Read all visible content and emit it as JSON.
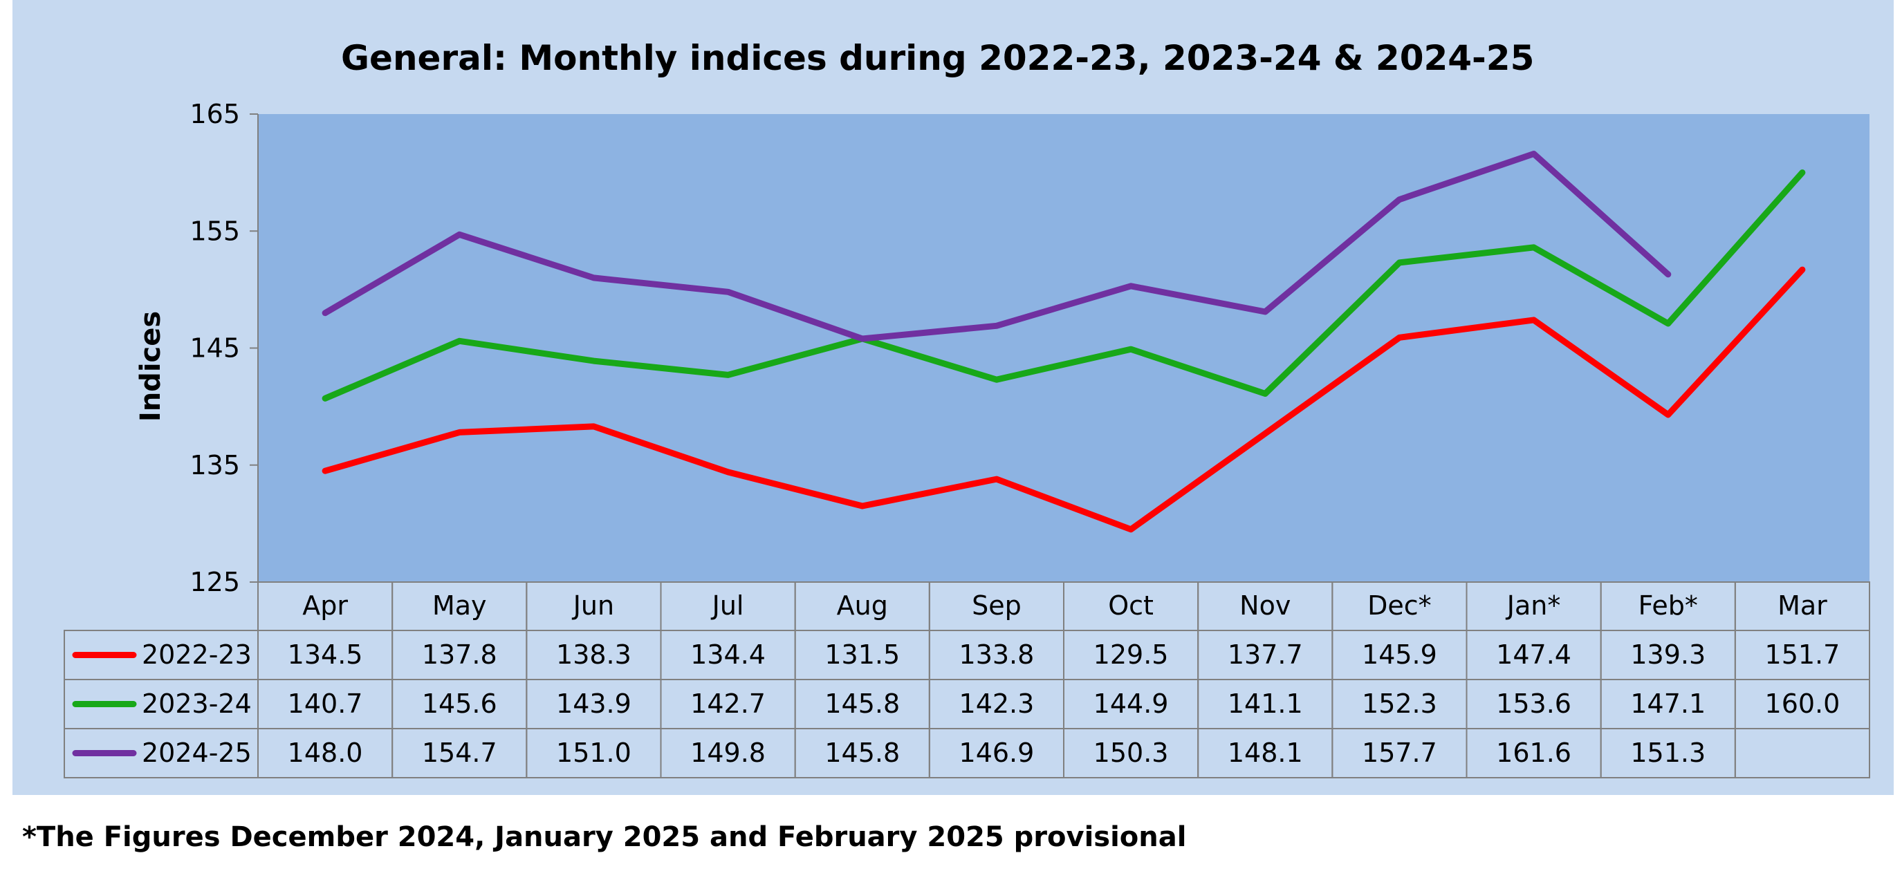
{
  "chart_data": {
    "type": "line",
    "title": "General: Monthly indices during 2022-23, 2023-24 & 2024-25",
    "ylabel": "Indices",
    "xlabel": "",
    "ylim": [
      125,
      165
    ],
    "yticks": [
      "125",
      "135",
      "145",
      "155",
      "165"
    ],
    "grid": false,
    "legend": "data-table-left",
    "categories": [
      "Apr",
      "May",
      "Jun",
      "Jul",
      "Aug",
      "Sep",
      "Oct",
      "Nov",
      "Dec*",
      "Jan*",
      "Feb*",
      "Mar"
    ],
    "series": [
      {
        "name": "2022-23",
        "color": "#ff0000",
        "values": [
          134.5,
          137.8,
          138.3,
          134.4,
          131.5,
          133.8,
          129.5,
          137.7,
          145.9,
          147.4,
          139.3,
          151.7
        ],
        "labels": [
          "134.5",
          "137.8",
          "138.3",
          "134.4",
          "131.5",
          "133.8",
          "129.5",
          "137.7",
          "145.9",
          "147.4",
          "139.3",
          "151.7"
        ]
      },
      {
        "name": "2023-24",
        "color": "#18a818",
        "values": [
          140.7,
          145.6,
          143.9,
          142.7,
          145.8,
          142.3,
          144.9,
          141.1,
          152.3,
          153.6,
          147.1,
          160.0
        ],
        "labels": [
          "140.7",
          "145.6",
          "143.9",
          "142.7",
          "145.8",
          "142.3",
          "144.9",
          "141.1",
          "152.3",
          "153.6",
          "147.1",
          "160.0"
        ]
      },
      {
        "name": "2024-25",
        "color": "#7030a0",
        "values": [
          148.0,
          154.7,
          151.0,
          149.8,
          145.8,
          146.9,
          150.3,
          148.1,
          157.7,
          161.6,
          151.3,
          null
        ],
        "labels": [
          "148.0",
          "154.7",
          "151.0",
          "149.8",
          "145.8",
          "146.9",
          "150.3",
          "148.1",
          "157.7",
          "161.6",
          "151.3",
          ""
        ]
      }
    ],
    "colors": {
      "frame_background": "#c6d9f0",
      "plot_background": "#8db3e2",
      "table_border": "#808080"
    }
  },
  "footnote": "*The Figures December 2024, January 2025 and February 2025 provisional"
}
